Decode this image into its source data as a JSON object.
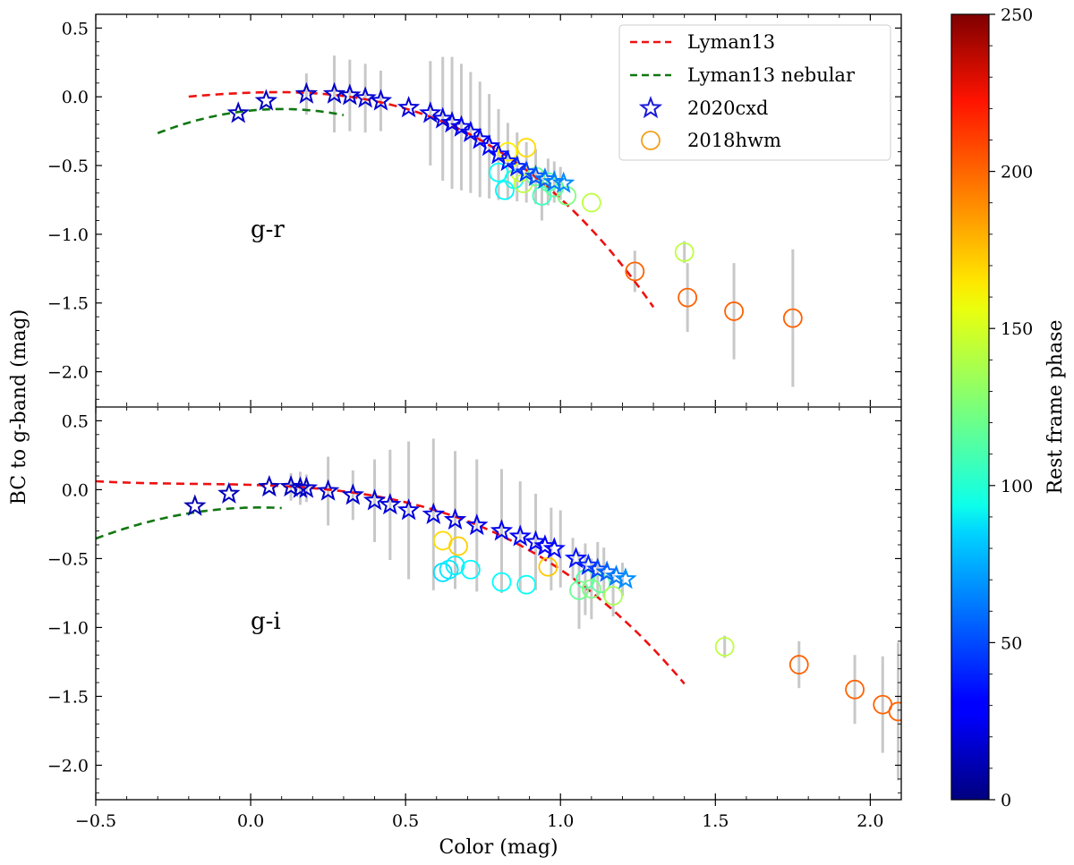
{
  "chart_data": {
    "type": "scatter",
    "xlabel": "Color (mag)",
    "ylabel": "BC to g-band (mag)",
    "xlim": [
      -0.5,
      2.1
    ],
    "x_ticks": [
      "−0.5",
      "0.0",
      "0.5",
      "1.0",
      "1.5",
      "2.0"
    ],
    "x_tick_values": [
      -0.5,
      0.0,
      0.5,
      1.0,
      1.5,
      2.0
    ],
    "colorbar": {
      "label": "Rest frame phase",
      "range": [
        0,
        250
      ],
      "ticks": [
        "0",
        "50",
        "100",
        "150",
        "200",
        "250"
      ],
      "tick_values": [
        0,
        50,
        100,
        150,
        200,
        250
      ],
      "colormap": "jet"
    },
    "legend": {
      "position": "top-right",
      "entries": [
        {
          "label": "Lyman13",
          "style": "dashed-line",
          "color": "#ee1111"
        },
        {
          "label": "Lyman13 nebular",
          "style": "dashed-line",
          "color": "#117711"
        },
        {
          "label": "2020cxd",
          "style": "star",
          "color": "#1a1ad8"
        },
        {
          "label": "2018hwm",
          "style": "circle",
          "color": "#f0a020"
        }
      ]
    },
    "panels": [
      {
        "name": "g-r",
        "label": "g-r",
        "ylim": [
          -2.25,
          0.6
        ],
        "y_ticks": [
          "0.5",
          "0.0",
          "−0.5",
          "−1.0",
          "−1.5",
          "−2.0"
        ],
        "y_tick_values": [
          0.5,
          0.0,
          -0.5,
          -1.0,
          -1.5,
          -2.0
        ],
        "lyman13": {
          "x_range": [
            -0.2,
            1.3
          ],
          "coef": [
            0.03,
            0.08,
            -0.4,
            -0.45
          ]
        },
        "lyman13_nebular": {
          "x_range": [
            -0.3,
            0.3
          ],
          "coef": [
            -0.1,
            0.22,
            -1.1,
            0
          ]
        },
        "series_2020cxd": [
          [
            -0.04,
            -0.12,
            15
          ],
          [
            0.05,
            -0.03,
            16
          ],
          [
            0.18,
            0.02,
            17
          ],
          [
            0.27,
            0.02,
            18
          ],
          [
            0.32,
            0.01,
            19
          ],
          [
            0.37,
            -0.01,
            20
          ],
          [
            0.42,
            -0.03,
            21
          ],
          [
            0.51,
            -0.08,
            22
          ],
          [
            0.58,
            -0.12,
            23
          ],
          [
            0.62,
            -0.16,
            24
          ],
          [
            0.65,
            -0.19,
            25
          ],
          [
            0.68,
            -0.22,
            26
          ],
          [
            0.71,
            -0.26,
            27
          ],
          [
            0.74,
            -0.31,
            28
          ],
          [
            0.77,
            -0.36,
            30
          ],
          [
            0.8,
            -0.42,
            33
          ],
          [
            0.83,
            -0.47,
            36
          ],
          [
            0.86,
            -0.51,
            40
          ],
          [
            0.89,
            -0.55,
            45
          ],
          [
            0.92,
            -0.58,
            52
          ],
          [
            0.95,
            -0.6,
            58
          ],
          [
            0.98,
            -0.62,
            62
          ],
          [
            1.01,
            -0.63,
            65
          ]
        ],
        "series_2020cxd_errors": [
          [
            0.18,
            0.15
          ],
          [
            0.27,
            0.28
          ],
          [
            0.32,
            0.26
          ],
          [
            0.37,
            0.25
          ],
          [
            0.42,
            0.22
          ],
          [
            0.58,
            0.38
          ],
          [
            0.62,
            0.45
          ],
          [
            0.65,
            0.48
          ],
          [
            0.68,
            0.46
          ],
          [
            0.71,
            0.44
          ],
          [
            0.74,
            0.42
          ],
          [
            0.77,
            0.38
          ],
          [
            0.8,
            0.33
          ],
          [
            0.83,
            0.28
          ],
          [
            0.86,
            0.25
          ],
          [
            0.89,
            0.22
          ],
          [
            0.92,
            0.2
          ],
          [
            0.94,
            0.18
          ],
          [
            0.96,
            0.17
          ],
          [
            0.98,
            0.15
          ],
          [
            1.0,
            0.12
          ]
        ],
        "series_2018hwm": [
          [
            0.8,
            -0.55,
            95
          ],
          [
            0.82,
            -0.68,
            92
          ],
          [
            0.85,
            -0.6,
            98
          ],
          [
            0.83,
            -0.4,
            160
          ],
          [
            0.89,
            -0.37,
            165
          ],
          [
            0.87,
            -0.55,
            145
          ],
          [
            0.88,
            -0.63,
            140
          ],
          [
            0.92,
            -0.58,
            120
          ],
          [
            0.94,
            -0.72,
            110
          ],
          [
            0.96,
            -0.62,
            115
          ],
          [
            0.98,
            -0.66,
            118
          ],
          [
            1.02,
            -0.72,
            125
          ],
          [
            1.1,
            -0.77,
            140
          ],
          [
            1.4,
            -1.13,
            140
          ],
          [
            1.24,
            -1.27,
            195
          ],
          [
            1.41,
            -1.46,
            195
          ],
          [
            1.56,
            -1.56,
            195
          ],
          [
            1.75,
            -1.61,
            195
          ]
        ],
        "series_2018hwm_errors": [
          [
            1.4,
            0.08
          ],
          [
            1.24,
            0.15
          ],
          [
            1.41,
            0.25
          ],
          [
            1.56,
            0.35
          ],
          [
            1.75,
            0.5
          ]
        ]
      },
      {
        "name": "g-i",
        "label": "g-i",
        "ylim": [
          -2.25,
          0.6
        ],
        "y_ticks": [
          "0.5",
          "0.0",
          "−0.5",
          "−1.0",
          "−1.5",
          "−2.0"
        ],
        "y_tick_values": [
          0.5,
          0.0,
          -0.5,
          -1.0,
          -1.5,
          -2.0
        ],
        "lyman13": {
          "x_range": [
            -0.5,
            1.4
          ],
          "coef": [
            0.035,
            -0.065,
            -0.2,
            -0.35
          ]
        },
        "lyman13_nebular": {
          "x_range": [
            -0.5,
            0.1
          ],
          "coef": [
            -0.13,
            0.05,
            -0.8,
            0
          ]
        },
        "series_2020cxd": [
          [
            -0.18,
            -0.12,
            12
          ],
          [
            -0.07,
            -0.03,
            14
          ],
          [
            0.06,
            0.02,
            15
          ],
          [
            0.13,
            0.02,
            16
          ],
          [
            0.16,
            0.01,
            17
          ],
          [
            0.18,
            0.01,
            18
          ],
          [
            0.25,
            -0.01,
            19
          ],
          [
            0.33,
            -0.04,
            20
          ],
          [
            0.4,
            -0.08,
            21
          ],
          [
            0.45,
            -0.11,
            22
          ],
          [
            0.51,
            -0.15,
            23
          ],
          [
            0.59,
            -0.18,
            24
          ],
          [
            0.66,
            -0.22,
            25
          ],
          [
            0.73,
            -0.26,
            26
          ],
          [
            0.81,
            -0.3,
            27
          ],
          [
            0.87,
            -0.34,
            28
          ],
          [
            0.92,
            -0.38,
            29
          ],
          [
            0.95,
            -0.41,
            30
          ],
          [
            0.98,
            -0.43,
            32
          ],
          [
            1.05,
            -0.5,
            35
          ],
          [
            1.09,
            -0.55,
            40
          ],
          [
            1.12,
            -0.58,
            48
          ],
          [
            1.15,
            -0.6,
            55
          ],
          [
            1.18,
            -0.63,
            62
          ],
          [
            1.21,
            -0.65,
            66
          ]
        ],
        "series_2020cxd_errors": [
          [
            0.13,
            0.1
          ],
          [
            0.16,
            0.12
          ],
          [
            0.18,
            0.1
          ],
          [
            0.25,
            0.25
          ],
          [
            0.33,
            0.18
          ],
          [
            0.4,
            0.3
          ],
          [
            0.45,
            0.4
          ],
          [
            0.51,
            0.5
          ],
          [
            0.59,
            0.55
          ],
          [
            0.66,
            0.5
          ],
          [
            0.73,
            0.48
          ],
          [
            0.81,
            0.45
          ],
          [
            0.87,
            0.4
          ],
          [
            0.92,
            0.35
          ],
          [
            0.97,
            0.3
          ],
          [
            1.0,
            0.28
          ],
          [
            1.04,
            0.15
          ],
          [
            1.06,
            0.28
          ],
          [
            1.08,
            0.26
          ],
          [
            1.1,
            0.22
          ],
          [
            1.12,
            0.2
          ],
          [
            1.14,
            0.18
          ],
          [
            1.17,
            0.15
          ],
          [
            1.2,
            0.12
          ]
        ],
        "series_2018hwm": [
          [
            0.62,
            -0.6,
            85
          ],
          [
            0.64,
            -0.58,
            88
          ],
          [
            0.66,
            -0.55,
            90
          ],
          [
            0.71,
            -0.58,
            92
          ],
          [
            0.81,
            -0.67,
            94
          ],
          [
            0.89,
            -0.69,
            95
          ],
          [
            0.62,
            -0.37,
            165
          ],
          [
            0.67,
            -0.41,
            168
          ],
          [
            0.96,
            -0.56,
            170
          ],
          [
            1.06,
            -0.73,
            120
          ],
          [
            1.08,
            -0.65,
            115
          ],
          [
            1.1,
            -0.72,
            125
          ],
          [
            1.13,
            -0.68,
            118
          ],
          [
            1.17,
            -0.77,
            135
          ],
          [
            1.53,
            -1.14,
            140
          ],
          [
            1.77,
            -1.27,
            195
          ],
          [
            1.95,
            -1.45,
            195
          ],
          [
            2.04,
            -1.56,
            195
          ],
          [
            2.09,
            -1.61,
            195
          ]
        ],
        "series_2018hwm_errors": [
          [
            1.53,
            0.08
          ],
          [
            1.77,
            0.17
          ],
          [
            1.95,
            0.25
          ],
          [
            2.04,
            0.35
          ],
          [
            2.09,
            0.5
          ]
        ]
      }
    ]
  }
}
